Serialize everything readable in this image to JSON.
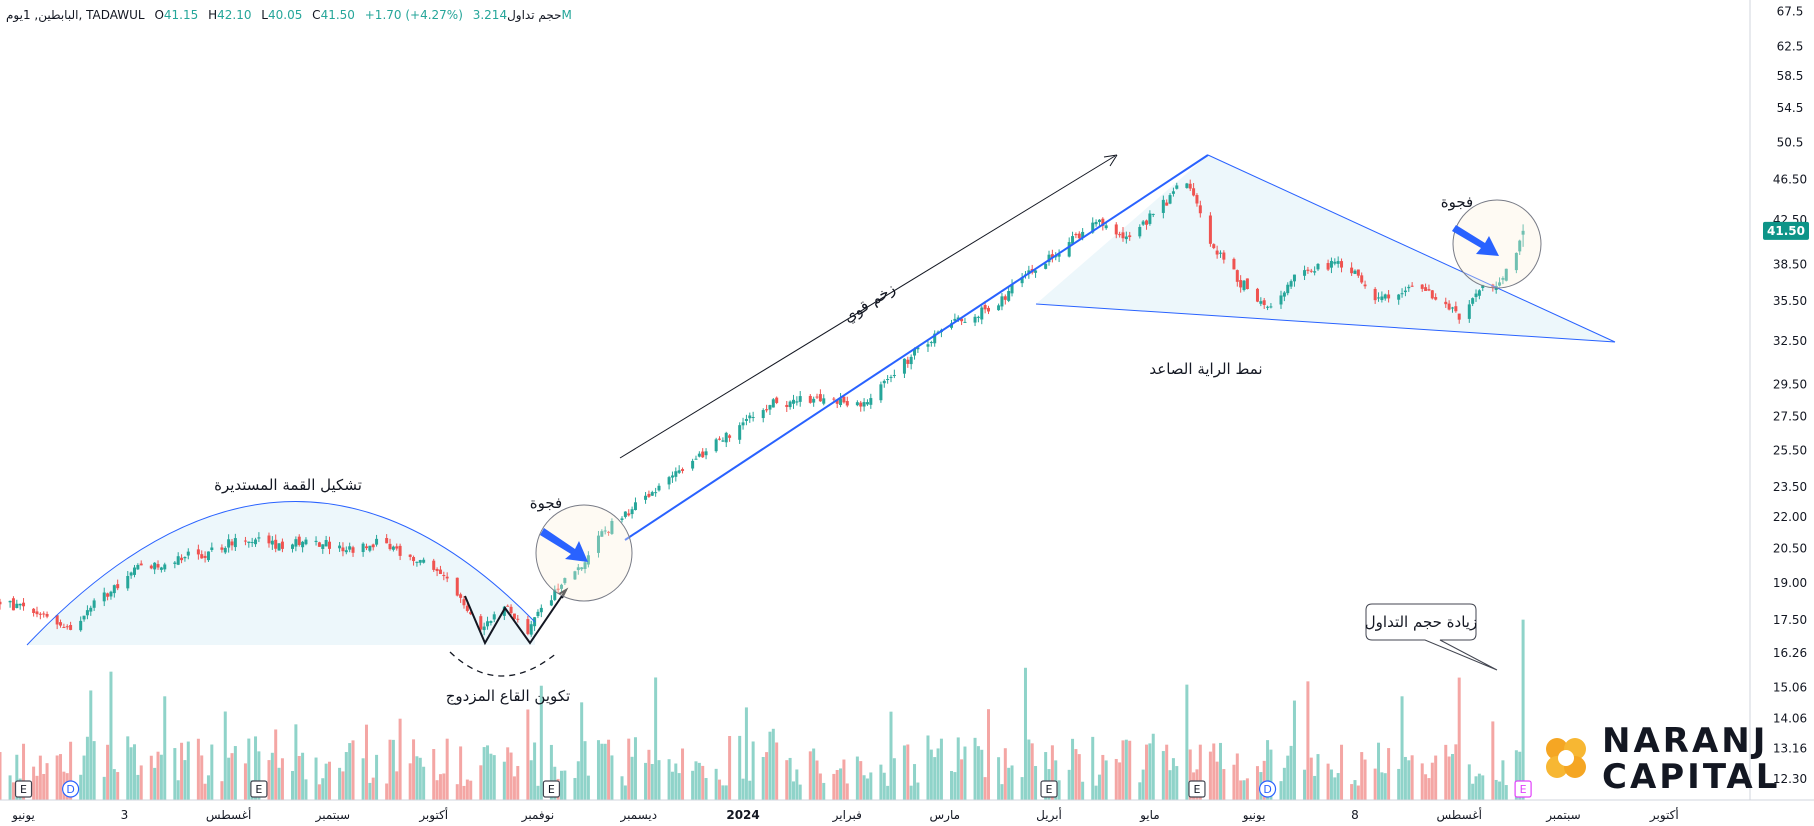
{
  "legend": {
    "name": "البابطين, 1يوم, TADAWUL",
    "open_label": "O",
    "open": "41.15",
    "high_label": "H",
    "high": "42.10",
    "low_label": "L",
    "low": "40.05",
    "close_label": "C",
    "close": "41.50",
    "change": "+1.70 (+4.27%)",
    "volume_label": "حجم تداول",
    "volume": "3.214M"
  },
  "price_badge": "41.50",
  "annotations": {
    "rounded_top": "تشكيل القمة المستديرة",
    "double_bottom": "تكوين القاع المزدوج",
    "gap_1": "فجوة",
    "gap_2": "فجوة",
    "strong_momentum": "زخم قوي",
    "flag_pattern": "نمط الراية الصاعد",
    "volume_increase": "زيادة حجم التداول"
  },
  "brand": {
    "line1": "NARANJ",
    "line2": "CAPITAL"
  },
  "colors": {
    "up": "#26a69a",
    "down": "#ef5350",
    "vol_up": "#8fd3c9",
    "vol_down": "#f4a6a4",
    "trend": "#2962ff",
    "accent": "#f5a623",
    "badge": "#0d9488",
    "fill": "#e6f4fa"
  },
  "events": [
    {
      "label": "E",
      "type": "earnings",
      "date": "2023-06-01"
    },
    {
      "label": "D",
      "type": "dividend",
      "date": "2023-06-15"
    },
    {
      "label": "E",
      "type": "earnings",
      "date": "2023-08-10"
    },
    {
      "label": "E",
      "type": "earnings",
      "date": "2023-11-05"
    },
    {
      "label": "E",
      "type": "earnings",
      "date": "2024-04-01"
    },
    {
      "label": "E",
      "type": "earnings",
      "date": "2024-05-15"
    },
    {
      "label": "D",
      "type": "dividend",
      "date": "2024-06-05"
    },
    {
      "label": "E",
      "type": "earnings-upcoming",
      "date": "2024-08-20"
    }
  ],
  "chart_data": {
    "type": "candlestick",
    "x_range": [
      "2023-05-25",
      "2024-10-25"
    ],
    "y_axis": {
      "ticks": [
        "67.5",
        "62.5",
        "58.5",
        "54.5",
        "50.5",
        "46.50",
        "42.50",
        "38.50",
        "35.50",
        "32.50",
        "29.50",
        "27.50",
        "25.50",
        "23.50",
        "22.00",
        "20.50",
        "19.00",
        "17.50",
        "16.26",
        "15.06",
        "14.06",
        "13.16",
        "12.30"
      ],
      "scale": "log",
      "range": [
        12.0,
        68.5
      ]
    },
    "x_axis": {
      "ticks": [
        {
          "label": "يونيو",
          "date": "2023-06-01"
        },
        {
          "label": "3",
          "date": "2023-07-01"
        },
        {
          "label": "أغسطس",
          "date": "2023-08-01"
        },
        {
          "label": "سبتمبر",
          "date": "2023-09-01"
        },
        {
          "label": "أكتوبر",
          "date": "2023-10-01"
        },
        {
          "label": "نوفمبر",
          "date": "2023-11-01"
        },
        {
          "label": "ديسمبر",
          "date": "2023-12-01"
        },
        {
          "label": "2024",
          "date": "2024-01-01"
        },
        {
          "label": "فبراير",
          "date": "2024-02-01"
        },
        {
          "label": "مارس",
          "date": "2024-03-01"
        },
        {
          "label": "أبريل",
          "date": "2024-04-01"
        },
        {
          "label": "مايو",
          "date": "2024-05-01"
        },
        {
          "label": "يونيو",
          "date": "2024-06-01"
        },
        {
          "label": "8",
          "date": "2024-07-01"
        },
        {
          "label": "أغسطس",
          "date": "2024-08-01"
        },
        {
          "label": "سبتمبر",
          "date": "2024-09-01"
        },
        {
          "label": "أكتوبر",
          "date": "2024-10-01"
        }
      ]
    },
    "price_path": [
      [
        "2023-05-25",
        18.2
      ],
      [
        "2023-06-05",
        17.8
      ],
      [
        "2023-06-15",
        17.2
      ],
      [
        "2023-06-25",
        18.5
      ],
      [
        "2023-07-05",
        19.6
      ],
      [
        "2023-07-15",
        20.0
      ],
      [
        "2023-07-25",
        20.3
      ],
      [
        "2023-08-05",
        21.0
      ],
      [
        "2023-08-15",
        20.6
      ],
      [
        "2023-08-25",
        20.9
      ],
      [
        "2023-09-05",
        20.4
      ],
      [
        "2023-09-15",
        20.8
      ],
      [
        "2023-09-25",
        20.1
      ],
      [
        "2023-10-01",
        19.7
      ],
      [
        "2023-10-08",
        18.5
      ],
      [
        "2023-10-15",
        17.2
      ],
      [
        "2023-10-22",
        18.2
      ],
      [
        "2023-10-29",
        17.1
      ],
      [
        "2023-11-05",
        18.4
      ],
      [
        "2023-11-10",
        19.3
      ],
      [
        "2023-11-15",
        20.0
      ],
      [
        "2023-11-20",
        21.2
      ],
      [
        "2023-11-28",
        22.3
      ],
      [
        "2023-12-10",
        24.0
      ],
      [
        "2023-12-25",
        26.0
      ],
      [
        "2024-01-10",
        28.3
      ],
      [
        "2024-01-25",
        28.6
      ],
      [
        "2024-02-05",
        28.2
      ],
      [
        "2024-02-18",
        31.0
      ],
      [
        "2024-03-01",
        33.5
      ],
      [
        "2024-03-15",
        35.0
      ],
      [
        "2024-03-25",
        37.5
      ],
      [
        "2024-04-05",
        40.0
      ],
      [
        "2024-04-15",
        42.5
      ],
      [
        "2024-04-25",
        40.8
      ],
      [
        "2024-05-05",
        44.0
      ],
      [
        "2024-05-12",
        46.5
      ],
      [
        "2024-05-18",
        41.0
      ],
      [
        "2024-05-28",
        37.0
      ],
      [
        "2024-06-05",
        35.0
      ],
      [
        "2024-06-15",
        38.0
      ],
      [
        "2024-06-28",
        38.6
      ],
      [
        "2024-07-08",
        35.6
      ],
      [
        "2024-07-20",
        36.7
      ],
      [
        "2024-08-01",
        34.3
      ],
      [
        "2024-08-08",
        36.5
      ],
      [
        "2024-08-14",
        37.2
      ],
      [
        "2024-08-18",
        39.8
      ],
      [
        "2024-08-20",
        41.5
      ]
    ],
    "volume_range": [
      0,
      3.6
    ]
  }
}
